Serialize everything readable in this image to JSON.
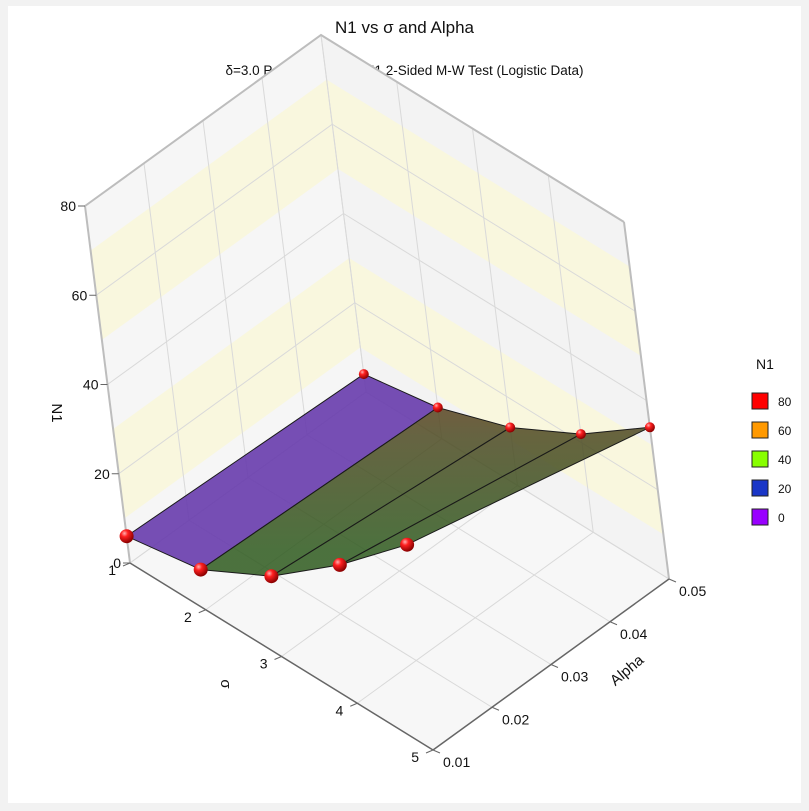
{
  "chart_data": {
    "type": "surface3d",
    "title": "N1 vs σ and Alpha",
    "subtitle": "δ=3.0 Power=0.90 N2=N1 2-Sided M-W Test (Logistic Data)",
    "zlabel": "N1",
    "xlabel": "σ",
    "ylabel": "Alpha",
    "x_ticks": [
      "1",
      "2",
      "3",
      "4",
      "5"
    ],
    "y_ticks": [
      "0.01",
      "0.02",
      "0.03",
      "0.04",
      "0.05"
    ],
    "z_ticks": [
      "0",
      "20",
      "40",
      "60",
      "80"
    ],
    "zlim": [
      0,
      80
    ],
    "points": [
      {
        "sigma": 1,
        "alpha": 0.01,
        "n1": 6
      },
      {
        "sigma": 2,
        "alpha": 0.01,
        "n1": 9
      },
      {
        "sigma": 3,
        "alpha": 0.01,
        "n1": 18
      },
      {
        "sigma": 4,
        "alpha": 0.01,
        "n1": 31
      },
      {
        "sigma": 5,
        "alpha": 0.01,
        "n1": 46
      },
      {
        "sigma": 1,
        "alpha": 0.05,
        "n1": 4
      },
      {
        "sigma": 2,
        "alpha": 0.05,
        "n1": 7
      },
      {
        "sigma": 3,
        "alpha": 0.05,
        "n1": 13
      },
      {
        "sigma": 4,
        "alpha": 0.05,
        "n1": 22
      },
      {
        "sigma": 5,
        "alpha": 0.05,
        "n1": 34
      }
    ],
    "legend": {
      "title": "N1",
      "entries": [
        {
          "label": "80",
          "color": "#ff0000"
        },
        {
          "label": "60",
          "color": "#ff9900"
        },
        {
          "label": "40",
          "color": "#88ff00"
        },
        {
          "label": "20",
          "color": "#1a36c7"
        },
        {
          "label": "0",
          "color": "#9900ff"
        }
      ],
      "placement": "right"
    },
    "marker_color": "#ee0000"
  }
}
